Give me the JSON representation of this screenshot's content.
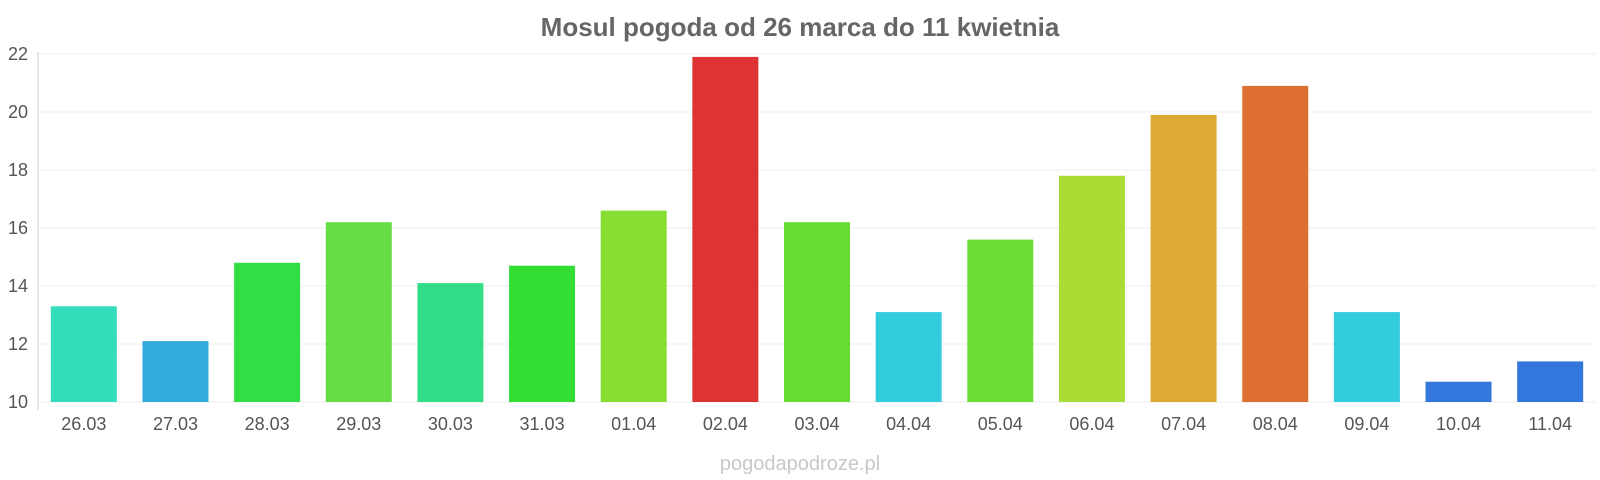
{
  "chart_data": {
    "type": "bar",
    "title": "Mosul pogoda od 26 marca do 11 kwietnia",
    "categories": [
      "26.03",
      "27.03",
      "28.03",
      "29.03",
      "30.03",
      "31.03",
      "01.04",
      "02.04",
      "03.04",
      "04.04",
      "05.04",
      "06.04",
      "07.04",
      "08.04",
      "09.04",
      "10.04",
      "11.04"
    ],
    "values": [
      13.3,
      12.1,
      14.8,
      16.2,
      14.1,
      14.7,
      16.6,
      21.9,
      16.2,
      13.1,
      15.6,
      17.8,
      19.9,
      20.9,
      13.1,
      10.7,
      11.4
    ],
    "colors": [
      "#33ddbb",
      "#33aadd",
      "#33dd44",
      "#66dd44",
      "#33dd88",
      "#33dd33",
      "#88dd33",
      "#dd3333",
      "#66dd33",
      "#33ccdd",
      "#6ddd33",
      "#aadd33",
      "#ddaa33",
      "#dd6f33",
      "#33ccdd",
      "#3377dd",
      "#3377dd"
    ],
    "ylim": [
      10,
      22
    ],
    "yticks": [
      10,
      12,
      14,
      16,
      18,
      20,
      22
    ],
    "grid": true,
    "legend": "none"
  },
  "footer": "pogodapodroze.pl"
}
